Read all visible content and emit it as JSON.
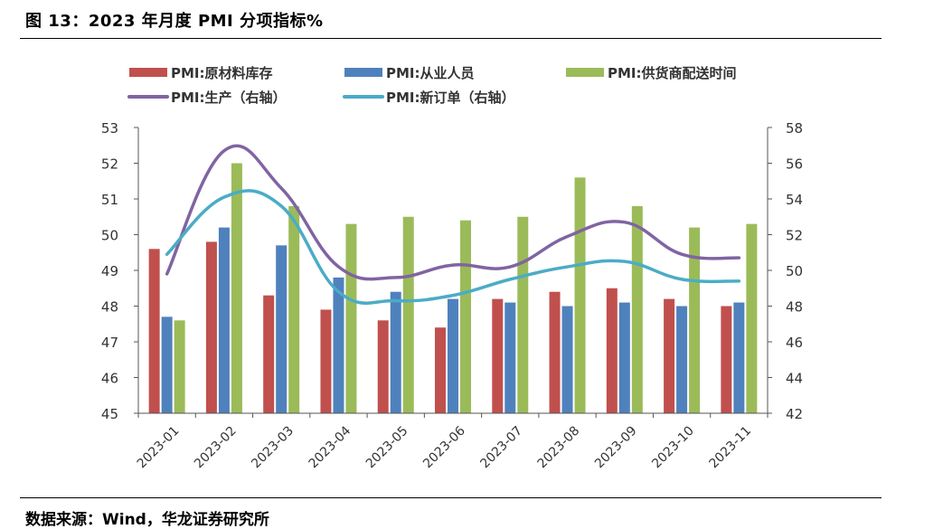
{
  "title": "图 13：2023 年月度 PMI 分项指标%",
  "source": "数据来源：Wind，华龙证券研究所",
  "chart_data": {
    "type": "bar",
    "categories": [
      "2023-01",
      "2023-02",
      "2023-03",
      "2023-04",
      "2023-05",
      "2023-06",
      "2023-07",
      "2023-08",
      "2023-09",
      "2023-10",
      "2023-11"
    ],
    "left_axis": {
      "ylim": [
        45,
        53
      ],
      "ticks": [
        "45",
        "46",
        "47",
        "48",
        "49",
        "50",
        "51",
        "52",
        "53"
      ]
    },
    "right_axis": {
      "ylim": [
        42,
        58
      ],
      "ticks": [
        "42",
        "44",
        "46",
        "48",
        "50",
        "52",
        "54",
        "56",
        "58"
      ]
    },
    "grid": false,
    "legend_position": "top",
    "bar_series": [
      {
        "name": "PMI:原材料库存",
        "color": "#c0504d",
        "values": [
          49.6,
          49.8,
          48.3,
          47.9,
          47.6,
          47.4,
          48.2,
          48.4,
          48.5,
          48.2,
          48.0
        ]
      },
      {
        "name": "PMI:从业人员",
        "color": "#4f81bd",
        "values": [
          47.7,
          50.2,
          49.7,
          48.8,
          48.4,
          48.2,
          48.1,
          48.0,
          48.1,
          48.0,
          48.1
        ]
      },
      {
        "name": "PMI:供货商配送时间",
        "color": "#9bbb59",
        "values": [
          47.6,
          52.0,
          50.8,
          50.3,
          50.5,
          50.4,
          50.5,
          51.6,
          50.8,
          50.2,
          50.3
        ]
      }
    ],
    "line_series": [
      {
        "name": "PMI:生产（右轴）",
        "color": "#8064a2",
        "values": [
          49.8,
          56.7,
          54.6,
          50.2,
          49.6,
          50.3,
          50.2,
          51.9,
          52.7,
          50.9,
          50.7
        ]
      },
      {
        "name": "PMI:新订单（右轴）",
        "color": "#4bacc6",
        "values": [
          50.9,
          54.1,
          53.6,
          48.8,
          48.3,
          48.6,
          49.5,
          50.2,
          50.5,
          49.5,
          49.4
        ]
      }
    ]
  }
}
